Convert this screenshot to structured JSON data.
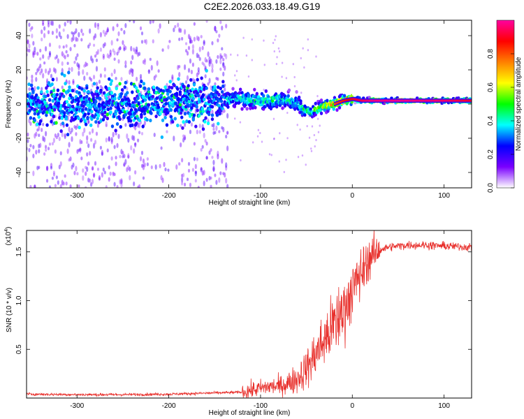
{
  "title": "C2E2.2026.033.18.49.G19",
  "chart_data": [
    {
      "type": "heatmap",
      "xlabel": "Height of straight line (km)",
      "ylabel": "Frequency (Hz)",
      "xlim": [
        -355,
        130
      ],
      "ylim": [
        -49,
        49
      ],
      "xticks": [
        -300,
        -200,
        -100,
        0,
        100
      ],
      "xtick_labels": [
        "-300",
        "-200",
        "-100",
        "0",
        "100"
      ],
      "yticks": [
        -40,
        -20,
        0,
        20,
        40
      ],
      "ytick_labels": [
        "-40",
        "-20",
        "0",
        "20",
        "40"
      ],
      "colorbar": {
        "label": "Normalized spectral amplitude",
        "range": [
          0.0,
          1.0
        ],
        "ticks": [
          0.0,
          0.2,
          0.4,
          0.6,
          0.8
        ],
        "tick_labels": [
          "0.0",
          "0.2",
          "0.4",
          "0.6",
          "0.8"
        ],
        "colors": [
          "#ffffff",
          "#7a00ff",
          "#0000ff",
          "#00ffff",
          "#00ff00",
          "#ffff00",
          "#ff8000",
          "#ff0000",
          "#ff00a0"
        ]
      },
      "ridge": {
        "height_km": [
          -355,
          -300,
          -250,
          -200,
          -150,
          -120,
          -100,
          -80,
          -70,
          -60,
          -52,
          -45,
          -40,
          -30,
          -20,
          -10,
          0,
          10,
          20,
          50,
          100,
          130
        ],
        "frequency_hz": [
          0,
          0,
          0,
          1,
          2,
          3,
          2,
          3,
          2,
          0,
          -3,
          -5,
          -3,
          -1,
          0,
          2,
          3,
          2,
          2,
          2,
          2,
          2
        ],
        "amplitude": [
          0.3,
          0.3,
          0.3,
          0.35,
          0.4,
          0.45,
          0.5,
          0.5,
          0.45,
          0.4,
          0.5,
          0.55,
          0.6,
          0.7,
          0.8,
          0.85,
          0.9,
          0.93,
          0.97,
          0.98,
          0.95,
          0.9
        ]
      }
    },
    {
      "type": "line",
      "xlabel": "Height of straight line (km)",
      "ylabel": "SNR (10 * v/v)",
      "yscale_label": "(x10",
      "yscale_exp": "4",
      "yscale_close": ")",
      "xlim": [
        -355,
        130
      ],
      "ylim": [
        0.0,
        1.72
      ],
      "xticks": [
        -300,
        -200,
        -100,
        0,
        100
      ],
      "xtick_labels": [
        "-300",
        "-200",
        "-100",
        "0",
        "100"
      ],
      "yticks": [
        0.5,
        1.0,
        1.5
      ],
      "ytick_labels": [
        "0.5",
        "1.0",
        "1.5"
      ],
      "color": "#e8302c",
      "series": [
        {
          "name": "SNR",
          "x": [
            -355,
            -300,
            -250,
            -200,
            -180,
            -160,
            -140,
            -120,
            -110,
            -100,
            -90,
            -80,
            -70,
            -60,
            -50,
            -40,
            -30,
            -20,
            -10,
            -5,
            0,
            10,
            20,
            30,
            40,
            60,
            80,
            100,
            130
          ],
          "y": [
            0.04,
            0.035,
            0.035,
            0.04,
            0.045,
            0.05,
            0.055,
            0.06,
            0.08,
            0.1,
            0.12,
            0.12,
            0.15,
            0.2,
            0.3,
            0.45,
            0.6,
            0.75,
            0.9,
            1.0,
            1.1,
            1.3,
            1.45,
            1.52,
            1.55,
            1.57,
            1.57,
            1.56,
            1.55
          ]
        }
      ]
    }
  ]
}
